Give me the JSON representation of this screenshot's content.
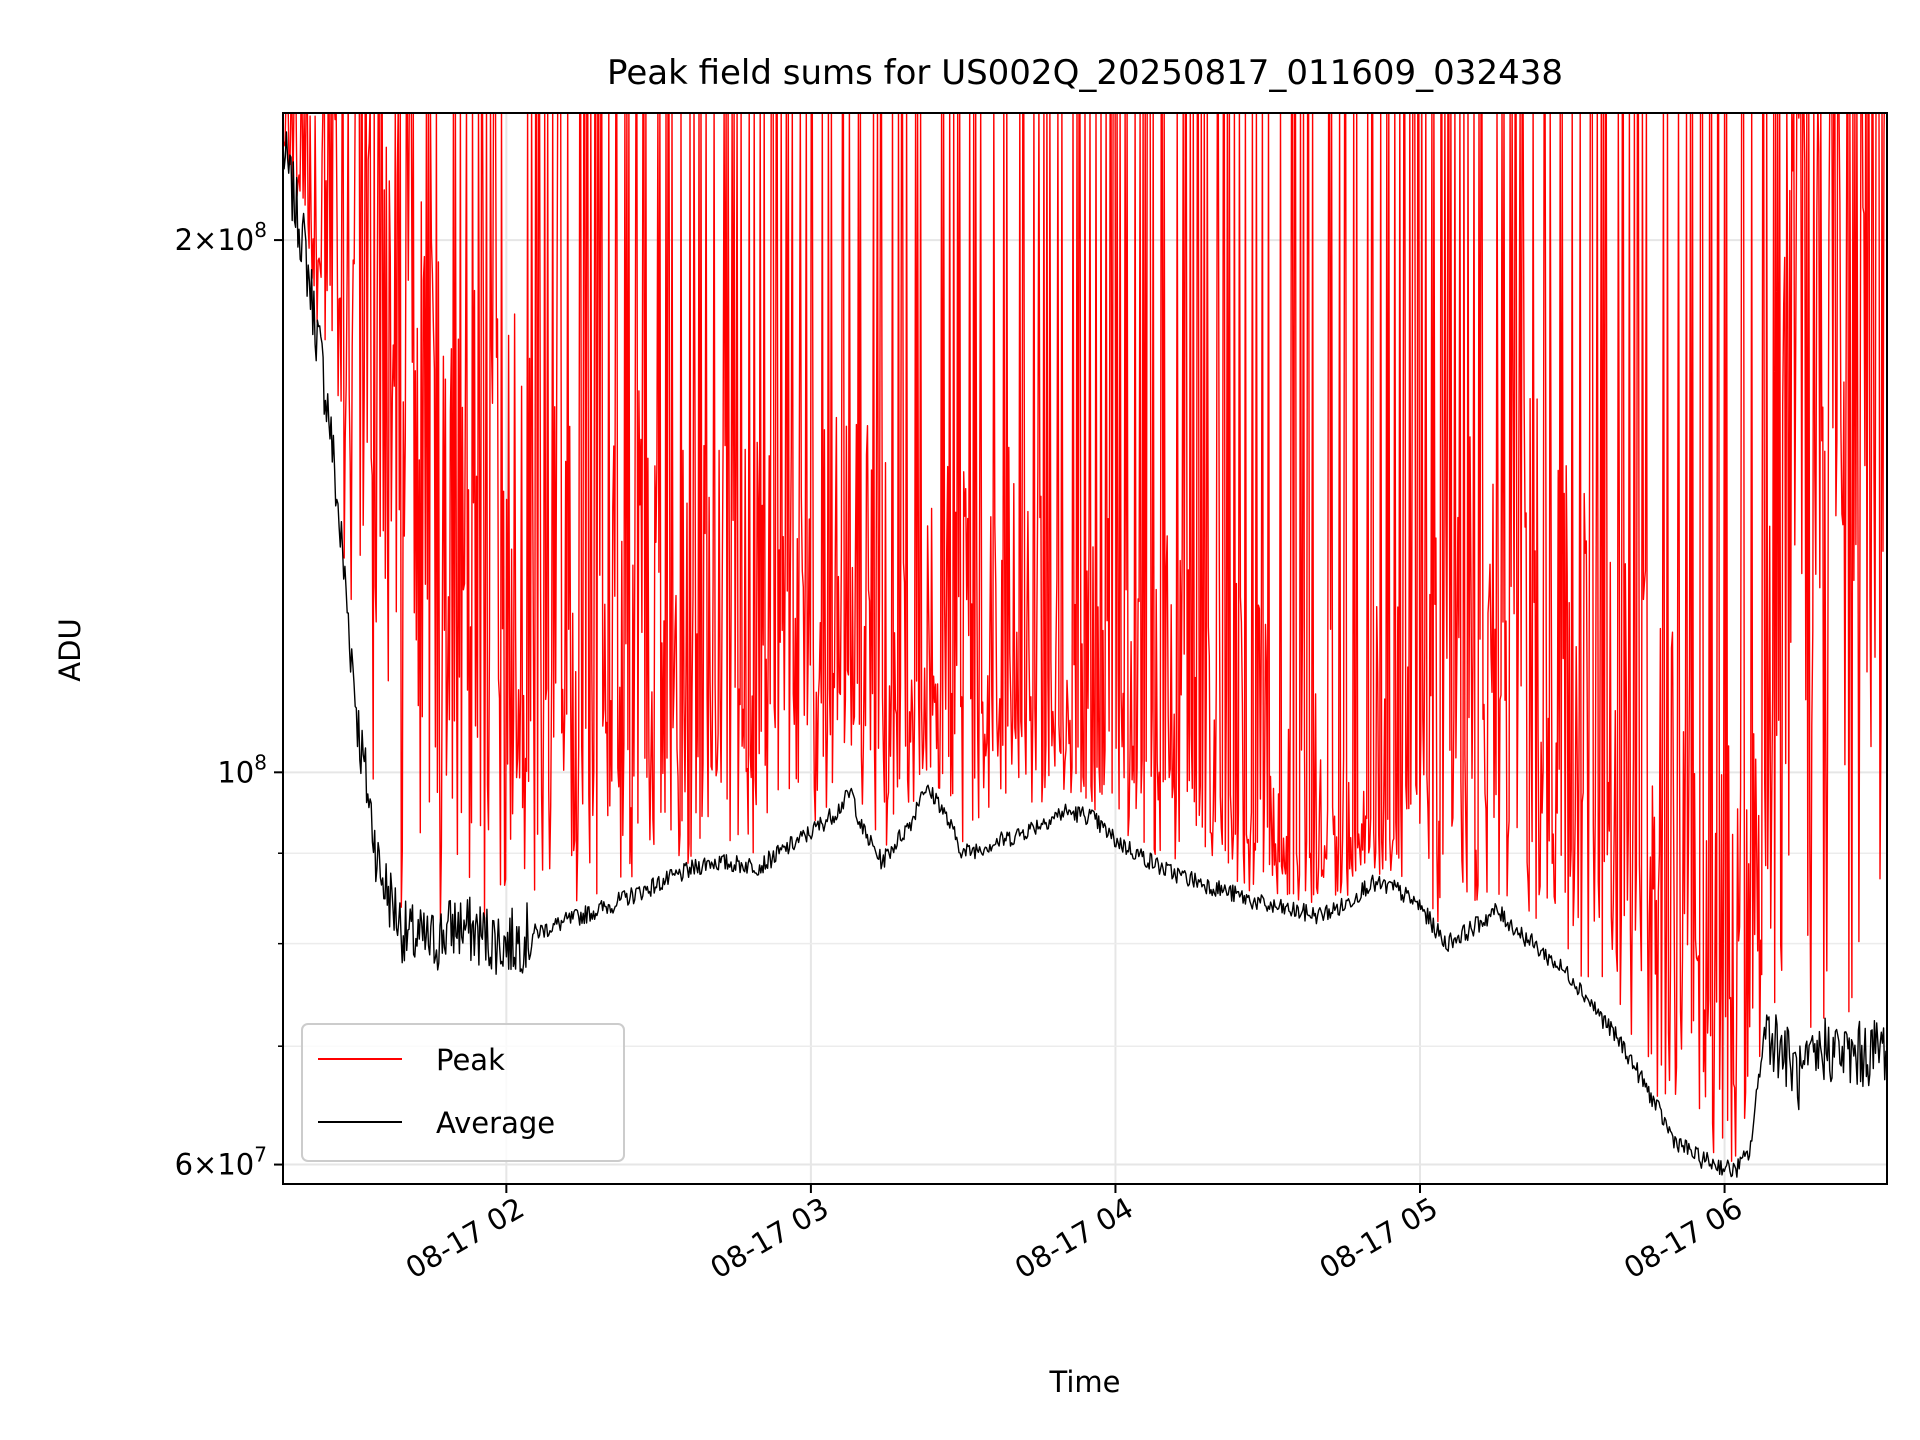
{
  "chart_data": {
    "type": "line",
    "title": "Peak field sums for US002Q_20250817_011609_032438",
    "xlabel": "Time",
    "ylabel": "ADU",
    "y_scale": "log",
    "xlim": [
      "2025-08-17 01:16",
      "2025-08-17 06:32"
    ],
    "ylim": [
      58500000,
      236000000
    ],
    "x_ticks": [
      {
        "value": "2025-08-17 02:00",
        "label": "08-17 02"
      },
      {
        "value": "2025-08-17 03:00",
        "label": "08-17 03"
      },
      {
        "value": "2025-08-17 04:00",
        "label": "08-17 04"
      },
      {
        "value": "2025-08-17 05:00",
        "label": "08-17 05"
      },
      {
        "value": "2025-08-17 06:00",
        "label": "08-17 06"
      }
    ],
    "y_major_ticks": [
      {
        "value": 60000000,
        "mantissa": "6",
        "exponent": "7"
      },
      {
        "value": 100000000,
        "mantissa": "",
        "exponent": "8"
      },
      {
        "value": 200000000,
        "mantissa": "2",
        "exponent": "8"
      }
    ],
    "y_minor_ticks": [
      70000000,
      80000000,
      90000000
    ],
    "grid": true,
    "legend": {
      "position": "lower left",
      "entries": [
        "Peak",
        "Average"
      ]
    },
    "series": [
      {
        "name": "Peak",
        "color": "#ff0000",
        "note": "Peak trace oscillates rapidly between the Average line and ~2.3e8 (clipped at top).",
        "points": [
          [
            "01:16",
            230000000
          ],
          [
            "01:20",
            225000000
          ],
          [
            "01:25",
            220000000
          ],
          [
            "01:30",
            215000000
          ],
          [
            "01:40",
            180000000
          ],
          [
            "01:50",
            160000000
          ],
          [
            "02:00",
            150000000
          ],
          [
            "02:10",
            140000000
          ],
          [
            "02:20",
            135000000
          ],
          [
            "02:30",
            130000000
          ],
          [
            "02:40",
            128000000
          ],
          [
            "02:50",
            125000000
          ],
          [
            "03:00",
            125000000
          ],
          [
            "03:10",
            130000000
          ],
          [
            "03:20",
            128000000
          ],
          [
            "03:30",
            125000000
          ],
          [
            "03:40",
            122000000
          ],
          [
            "03:50",
            120000000
          ],
          [
            "04:00",
            115000000
          ],
          [
            "04:10",
            110000000
          ],
          [
            "04:20",
            105000000
          ],
          [
            "04:30",
            100000000
          ],
          [
            "04:40",
            97000000
          ],
          [
            "04:50",
            100000000
          ],
          [
            "05:00",
            110000000
          ],
          [
            "05:10",
            125000000
          ],
          [
            "05:20",
            135000000
          ],
          [
            "05:30",
            120000000
          ],
          [
            "05:40",
            110000000
          ],
          [
            "05:50",
            100000000
          ],
          [
            "06:00",
            85000000
          ],
          [
            "06:05",
            80000000
          ],
          [
            "06:10",
            150000000
          ],
          [
            "06:15",
            220000000
          ],
          [
            "06:20",
            230000000
          ],
          [
            "06:25",
            232000000
          ],
          [
            "06:32",
            232000000
          ]
        ]
      },
      {
        "name": "Average",
        "color": "#000000",
        "points": [
          [
            "01:16",
            225000000
          ],
          [
            "01:20",
            200000000
          ],
          [
            "01:25",
            160000000
          ],
          [
            "01:28",
            130000000
          ],
          [
            "01:31",
            105000000
          ],
          [
            "01:35",
            88000000
          ],
          [
            "01:40",
            81000000
          ],
          [
            "01:45",
            80000000
          ],
          [
            "01:50",
            82000000
          ],
          [
            "01:55",
            81000000
          ],
          [
            "02:00",
            80000000
          ],
          [
            "02:05",
            81000000
          ],
          [
            "02:10",
            82000000
          ],
          [
            "02:20",
            84000000
          ],
          [
            "02:30",
            86500000
          ],
          [
            "02:40",
            89000000
          ],
          [
            "02:50",
            88500000
          ],
          [
            "02:55",
            90500000
          ],
          [
            "03:00",
            92500000
          ],
          [
            "03:05",
            95000000
          ],
          [
            "03:08",
            97500000
          ],
          [
            "03:10",
            93000000
          ],
          [
            "03:14",
            89000000
          ],
          [
            "03:20",
            94000000
          ],
          [
            "03:22",
            98000000
          ],
          [
            "03:25",
            96500000
          ],
          [
            "03:30",
            90000000
          ],
          [
            "03:40",
            92000000
          ],
          [
            "03:50",
            95000000
          ],
          [
            "03:55",
            94500000
          ],
          [
            "04:00",
            91500000
          ],
          [
            "04:10",
            88000000
          ],
          [
            "04:20",
            86000000
          ],
          [
            "04:30",
            84000000
          ],
          [
            "04:40",
            83000000
          ],
          [
            "04:45",
            84000000
          ],
          [
            "04:50",
            86500000
          ],
          [
            "04:55",
            86000000
          ],
          [
            "05:00",
            84000000
          ],
          [
            "05:05",
            80000000
          ],
          [
            "05:10",
            81500000
          ],
          [
            "05:15",
            83500000
          ],
          [
            "05:20",
            81000000
          ],
          [
            "05:30",
            76500000
          ],
          [
            "05:40",
            70000000
          ],
          [
            "05:45",
            66000000
          ],
          [
            "05:50",
            62000000
          ],
          [
            "05:55",
            60500000
          ],
          [
            "06:02",
            59500000
          ],
          [
            "06:05",
            61000000
          ],
          [
            "06:08",
            72000000
          ],
          [
            "06:11",
            70000000
          ],
          [
            "06:15",
            67000000
          ],
          [
            "06:20",
            70000000
          ],
          [
            "06:25",
            69000000
          ],
          [
            "06:32",
            70000000
          ]
        ]
      }
    ]
  }
}
